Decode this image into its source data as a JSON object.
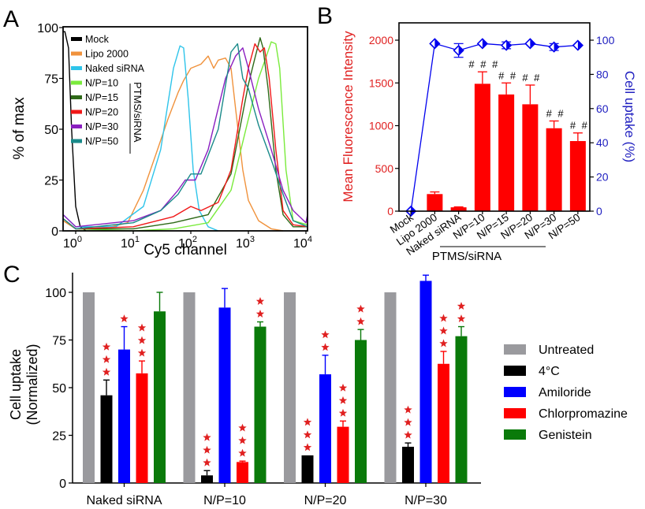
{
  "chart_data": [
    {
      "panel": "A",
      "type": "line",
      "title": "",
      "xlabel": "Cy5 channel",
      "ylabel": "% of max",
      "xscale": "log",
      "xlim": [
        0.6,
        12000
      ],
      "ylim": [
        0,
        100
      ],
      "xticks": [
        "10^0",
        "10^1",
        "10^2",
        "10^3",
        "10^4"
      ],
      "yticks": [
        0,
        25,
        50,
        75,
        100
      ],
      "legend_bracket_label": "PTMS/siRNA",
      "legend_position": "top-left",
      "series": [
        {
          "name": "Mock",
          "color": "#000000",
          "x": [
            0.6,
            0.65,
            0.75,
            0.85,
            1.0,
            1.2,
            1.5
          ],
          "y": [
            98,
            98,
            90,
            50,
            12,
            2,
            0
          ]
        },
        {
          "name": "Lipo 2000",
          "color": "#f0923c",
          "x": [
            0.6,
            1,
            3,
            8,
            15,
            25,
            40,
            60,
            75,
            100,
            150,
            200,
            250,
            300,
            400,
            500,
            600,
            800,
            1000,
            1500,
            2500,
            4000
          ],
          "y": [
            5,
            1,
            1,
            4,
            20,
            38,
            55,
            68,
            74,
            80,
            82,
            86,
            80,
            84,
            85,
            80,
            60,
            30,
            15,
            5,
            1,
            0
          ]
        },
        {
          "name": "Naked siRNA",
          "color": "#2ec4ea",
          "x": [
            0.6,
            1,
            5,
            15,
            30,
            50,
            65,
            75,
            90,
            110,
            140,
            200,
            300
          ],
          "y": [
            8,
            2,
            2,
            12,
            40,
            80,
            91,
            90,
            65,
            30,
            10,
            2,
            0
          ]
        },
        {
          "name": "N/P=10",
          "color": "#7aeb3c",
          "x": [
            0.6,
            1,
            10,
            50,
            200,
            500,
            1000,
            1500,
            2000,
            2500,
            3000,
            3500,
            4500,
            6000,
            12000
          ],
          "y": [
            6,
            1,
            0,
            1,
            4,
            20,
            55,
            75,
            85,
            93,
            92,
            80,
            30,
            5,
            3
          ]
        },
        {
          "name": "N/P=15",
          "color": "#2e6a18",
          "x": [
            0.6,
            1,
            10,
            50,
            200,
            500,
            1000,
            1300,
            1600,
            1800,
            2200,
            3000,
            4000,
            6000,
            12000
          ],
          "y": [
            6,
            1,
            1,
            4,
            8,
            28,
            72,
            85,
            95,
            90,
            70,
            30,
            8,
            2,
            2
          ]
        },
        {
          "name": "N/P=20",
          "color": "#f01818",
          "x": [
            0.6,
            1,
            10,
            50,
            100,
            150,
            300,
            500,
            800,
            1000,
            1300,
            1600,
            1900,
            2300,
            3000,
            4000,
            6000,
            12000
          ],
          "y": [
            6,
            1,
            2,
            7,
            12,
            10,
            14,
            30,
            65,
            80,
            92,
            88,
            90,
            75,
            40,
            10,
            3,
            2
          ]
        },
        {
          "name": "N/P=30",
          "color": "#8a1fc0",
          "x": [
            0.6,
            1,
            10,
            30,
            60,
            80,
            120,
            200,
            400,
            600,
            800,
            1000,
            1500,
            2500,
            4000,
            6000,
            10000,
            12000
          ],
          "y": [
            8,
            2,
            5,
            10,
            20,
            25,
            25,
            40,
            75,
            86,
            90,
            80,
            60,
            40,
            20,
            10,
            4,
            8
          ]
        },
        {
          "name": "N/P=50",
          "color": "#1a8a8a",
          "x": [
            0.6,
            1,
            10,
            30,
            60,
            100,
            150,
            300,
            500,
            650,
            800,
            1000,
            1500,
            2500,
            4000,
            6000,
            12000
          ],
          "y": [
            6,
            1,
            4,
            10,
            18,
            28,
            28,
            50,
            88,
            92,
            75,
            70,
            52,
            35,
            18,
            5,
            2
          ]
        }
      ]
    },
    {
      "panel": "B",
      "type": "bar",
      "title": "",
      "xlabel": "PTMS/siRNA",
      "ylabel": "Mean Fluorescence Intensity",
      "y2label": "Cell uptake (%)",
      "categories": [
        "Mock",
        "Lipo 2000",
        "Naked siRNA",
        "N/P=10",
        "N/P=15",
        "N/P=20",
        "N/P=30",
        "N/P=50"
      ],
      "ylim": [
        0,
        2200
      ],
      "y2lim": [
        0,
        110
      ],
      "yticks": [
        0,
        500,
        1000,
        1500,
        2000
      ],
      "y2ticks": [
        0,
        20,
        40,
        60,
        80,
        100
      ],
      "ycolor": "#e02020",
      "y2color": "#2020c0",
      "series": [
        {
          "name": "Mean Fluorescence Intensity",
          "axis": "left",
          "kind": "bar",
          "color": "#ff0000",
          "values": [
            0,
            200,
            45,
            1490,
            1365,
            1250,
            970,
            820
          ],
          "errors": [
            0,
            25,
            5,
            140,
            135,
            225,
            85,
            95
          ],
          "annotations": [
            "",
            "",
            "",
            "###",
            "##",
            "##",
            "##",
            "##"
          ]
        },
        {
          "name": "Cell uptake (%)",
          "axis": "right",
          "kind": "line",
          "color": "#0000ee",
          "values": [
            0,
            98,
            94,
            98,
            97,
            98,
            96,
            97
          ],
          "errors": [
            0,
            0,
            4,
            0,
            2,
            0,
            2,
            0
          ]
        }
      ]
    },
    {
      "panel": "C",
      "type": "bar",
      "title": "",
      "xlabel": "",
      "ylabel": "Cell uptake (Normalized)",
      "ylabel_lines": [
        "Cell uptake",
        "(Normalized)"
      ],
      "categories": [
        "Naked siRNA",
        "N/P=10",
        "N/P=20",
        "N/P=30"
      ],
      "ylim": [
        0,
        110
      ],
      "yticks": [
        0,
        25,
        50,
        75,
        100
      ],
      "legend_position": "right",
      "series": [
        {
          "name": "Untreated",
          "color": "#9a9a9e",
          "values": [
            100,
            100,
            100,
            100
          ],
          "errors": [
            0,
            0,
            0,
            0
          ],
          "stars": [
            0,
            0,
            0,
            0
          ]
        },
        {
          "name": "4°C",
          "color": "#000000",
          "values": [
            46,
            4,
            14.5,
            19
          ],
          "errors": [
            8,
            2.5,
            0,
            2
          ],
          "stars": [
            3,
            3,
            3,
            3
          ]
        },
        {
          "name": "Amiloride",
          "color": "#0000ff",
          "values": [
            70,
            92,
            57,
            106
          ],
          "errors": [
            12,
            10,
            10,
            3
          ],
          "stars": [
            1,
            0,
            2,
            0
          ]
        },
        {
          "name": "Chlorpromazine",
          "color": "#ff0000",
          "values": [
            57.5,
            11,
            29.5,
            62.5
          ],
          "errors": [
            6.5,
            0.5,
            3,
            6.5
          ],
          "stars": [
            3,
            3,
            3,
            3
          ]
        },
        {
          "name": "Genistein",
          "color": "#0a7a0a",
          "values": [
            90,
            82,
            75,
            77
          ],
          "errors": [
            10,
            2.5,
            5.5,
            5
          ],
          "stars": [
            0,
            2,
            2,
            2
          ]
        }
      ],
      "star_color": "#e02020"
    }
  ],
  "panel_labels": [
    "A",
    "B",
    "C"
  ]
}
